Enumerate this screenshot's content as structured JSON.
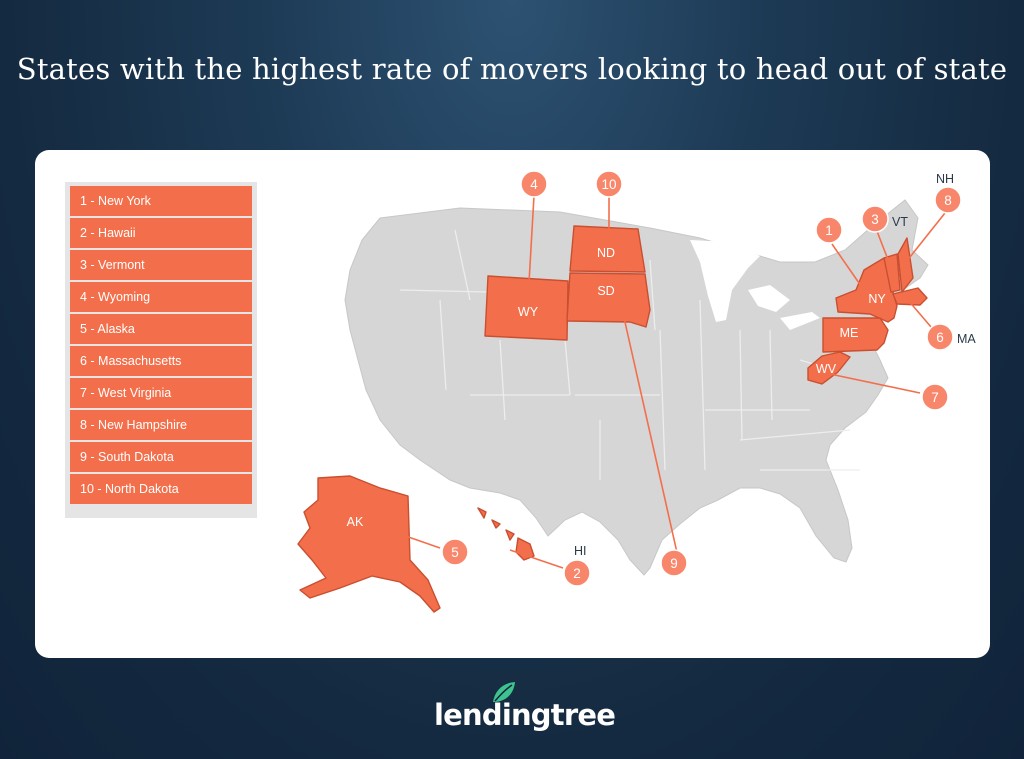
{
  "title": "States with the highest rate of movers looking to head out of state",
  "legend": [
    "1 - New York",
    "2 - Hawaii",
    "3 - Vermont",
    "4 - Wyoming",
    "5 - Alaska",
    "6 - Massachusetts",
    "7 - West Virginia",
    "8 - New Hampshire",
    "9 - South Dakota",
    "10 - North Dakota"
  ],
  "callouts": [
    "1",
    "2",
    "3",
    "4",
    "5",
    "6",
    "7",
    "8",
    "9",
    "10"
  ],
  "state_labels": {
    "wy": "WY",
    "nd": "ND",
    "sd": "SD",
    "ny": "NY",
    "me": "ME",
    "wv": "WV",
    "ak": "AK"
  },
  "external_labels": {
    "nh": "NH",
    "vt": "VT",
    "ma": "MA",
    "hi": "HI"
  },
  "colors": {
    "highlight": "#f36f4b",
    "base_state": "#d6d6d6",
    "background": "#1d3a55"
  },
  "brand": {
    "name": "lendingtree",
    "icon": "leaf-icon"
  }
}
